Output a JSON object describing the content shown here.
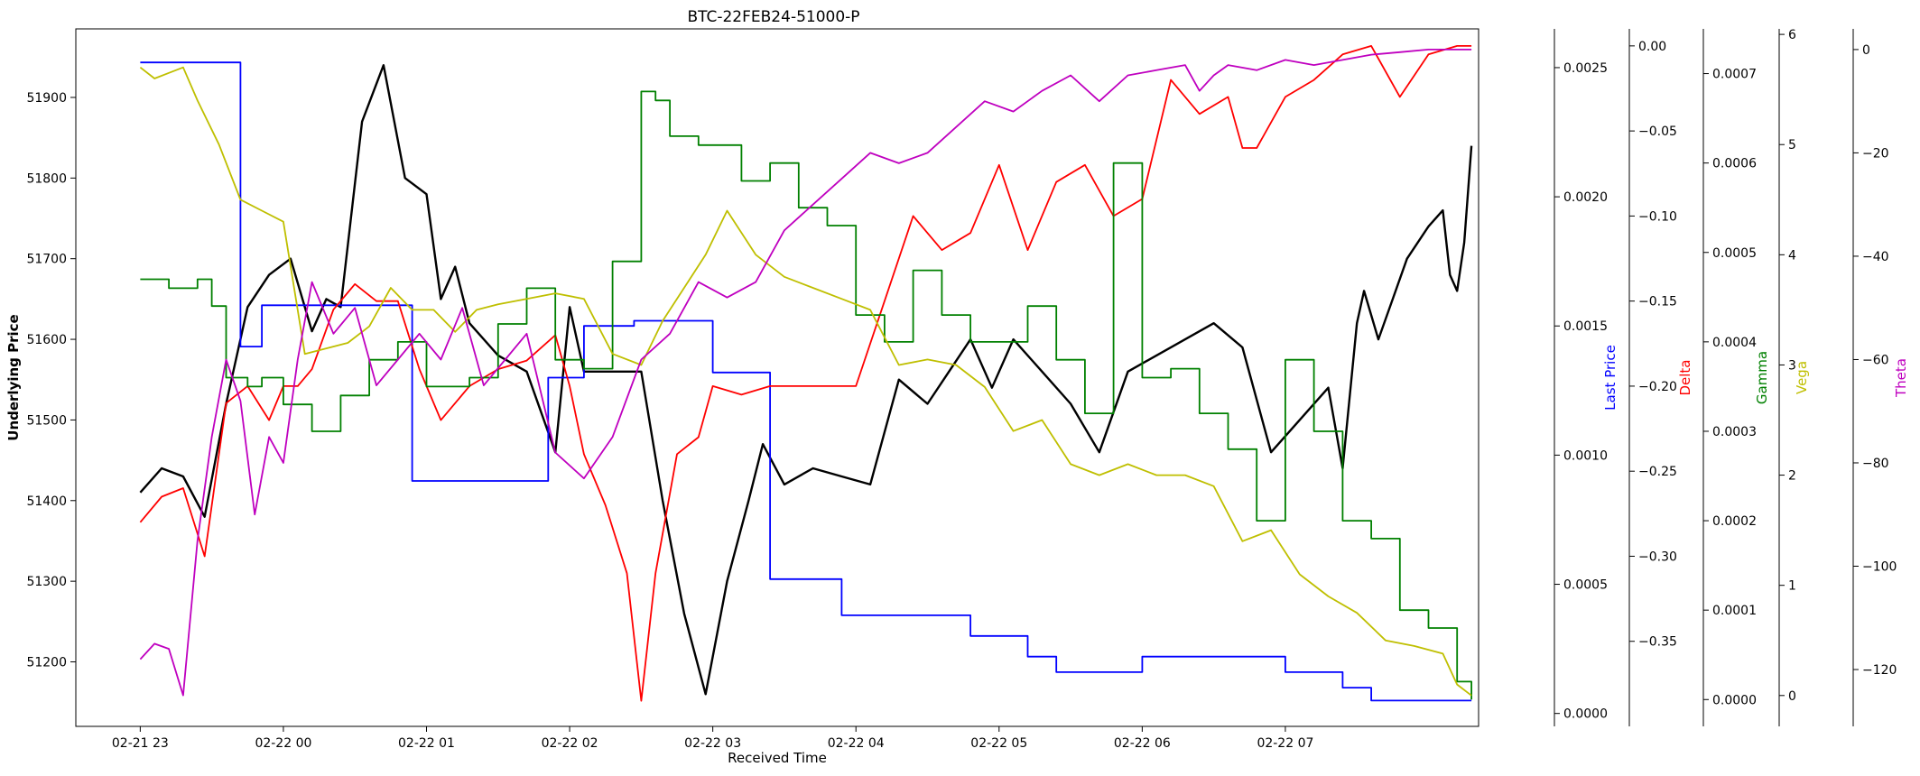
{
  "chart_data": {
    "type": "line",
    "title": "BTC-22FEB24-51000-P",
    "xlabel": "Received Time",
    "ylabel": "Underlying Price",
    "x_ticks": [
      "02-21 23",
      "02-22 00",
      "02-22 01",
      "02-22 02",
      "02-22 03",
      "02-22 04",
      "02-22 05",
      "02-22 06",
      "02-22 07"
    ],
    "x_range_hours": [
      -0.45,
      9.35
    ],
    "x_tick_hours": [
      0,
      1,
      2,
      3,
      4,
      5,
      6,
      7,
      8
    ],
    "grid": false,
    "legend": "none",
    "axes": [
      {
        "id": "underlying",
        "label": "Underlying Price",
        "color": "#000000",
        "side": "left",
        "ylim": [
          51120,
          51985
        ],
        "ticks": [
          51200,
          51300,
          51400,
          51500,
          51600,
          51700,
          51800,
          51900
        ],
        "tick_labels": [
          "51200",
          "51300",
          "51400",
          "51500",
          "51600",
          "51700",
          "51800",
          "51900"
        ]
      },
      {
        "id": "last_price",
        "label": "Last Price",
        "color": "#0000ff",
        "side": "right",
        "ylim": [
          -5e-05,
          0.00265
        ],
        "ticks": [
          0.0,
          0.0005,
          0.001,
          0.0015,
          0.002,
          0.0025
        ],
        "tick_labels": [
          "0.0000",
          "0.0005",
          "0.0010",
          "0.0015",
          "0.0020",
          "0.0025"
        ]
      },
      {
        "id": "delta",
        "label": "Delta",
        "color": "#ff0000",
        "side": "right",
        "ylim": [
          -0.4,
          0.01
        ],
        "ticks": [
          -0.35,
          -0.3,
          -0.25,
          -0.2,
          -0.15,
          -0.1,
          -0.05,
          0.0
        ],
        "tick_labels": [
          "−0.35",
          "−0.30",
          "−0.25",
          "−0.20",
          "−0.15",
          "−0.10",
          "−0.05",
          "0.00"
        ]
      },
      {
        "id": "gamma",
        "label": "Gamma",
        "color": "#008000",
        "side": "right",
        "ylim": [
          -3e-05,
          0.00075
        ],
        "ticks": [
          0.0,
          0.0001,
          0.0002,
          0.0003,
          0.0004,
          0.0005,
          0.0006,
          0.0007
        ],
        "tick_labels": [
          "0.0000",
          "0.0001",
          "0.0002",
          "0.0003",
          "0.0004",
          "0.0005",
          "0.0006",
          "0.0007"
        ]
      },
      {
        "id": "vega",
        "label": "Vega",
        "color": "#bfbf00",
        "side": "right",
        "ylim": [
          -0.28,
          6.05
        ],
        "ticks": [
          0,
          1,
          2,
          3,
          4,
          5,
          6
        ],
        "tick_labels": [
          "0",
          "1",
          "2",
          "3",
          "4",
          "5",
          "6"
        ]
      },
      {
        "id": "theta",
        "label": "Theta",
        "color": "#bf00bf",
        "side": "right",
        "ylim": [
          -131,
          4
        ],
        "ticks": [
          -120,
          -100,
          -80,
          -60,
          -40,
          -20,
          0
        ],
        "tick_labels": [
          "−120",
          "−100",
          "−80",
          "−60",
          "−40",
          "−20",
          "0"
        ]
      }
    ],
    "series": [
      {
        "name": "Underlying Price",
        "axis": "underlying",
        "step": false,
        "x": [
          0.0,
          0.15,
          0.3,
          0.45,
          0.6,
          0.75,
          0.9,
          1.05,
          1.2,
          1.3,
          1.4,
          1.55,
          1.7,
          1.85,
          2.0,
          2.1,
          2.2,
          2.3,
          2.5,
          2.7,
          2.9,
          3.0,
          3.1,
          3.2,
          3.35,
          3.5,
          3.65,
          3.8,
          3.95,
          4.1,
          4.25,
          4.35,
          4.5,
          4.7,
          4.9,
          5.1,
          5.3,
          5.5,
          5.65,
          5.8,
          5.95,
          6.1,
          6.3,
          6.5,
          6.7,
          6.9,
          7.1,
          7.3,
          7.5,
          7.7,
          7.9,
          8.1,
          8.3,
          8.4,
          8.5,
          8.55,
          8.65,
          8.75,
          8.85,
          9.0,
          9.1,
          9.15,
          9.2,
          9.25,
          9.3
        ],
        "values": [
          51410,
          51440,
          51430,
          51380,
          51520,
          51640,
          51680,
          51700,
          51610,
          51650,
          51640,
          51870,
          51940,
          51800,
          51780,
          51650,
          51690,
          51620,
          51580,
          51560,
          51460,
          51640,
          51560,
          51560,
          51560,
          51560,
          51400,
          51260,
          51160,
          51300,
          51400,
          51470,
          51420,
          51440,
          51430,
          51420,
          51550,
          51520,
          51560,
          51600,
          51540,
          51600,
          51560,
          51520,
          51460,
          51560,
          51580,
          51600,
          51620,
          51590,
          51460,
          51500,
          51540,
          51440,
          51620,
          51660,
          51600,
          51650,
          51700,
          51740,
          51760,
          51680,
          51660,
          51720,
          51840
        ]
      },
      {
        "name": "Last Price",
        "axis": "last_price",
        "step": true,
        "x": [
          0.0,
          0.65,
          0.7,
          0.8,
          0.85,
          0.95,
          1.6,
          1.7,
          1.8,
          1.9,
          2.0,
          2.4,
          2.5,
          2.85,
          3.0,
          3.05,
          3.1,
          3.4,
          3.45,
          3.6,
          4.0,
          4.1,
          4.4,
          4.65,
          4.9,
          5.1,
          5.3,
          5.5,
          5.6,
          5.8,
          6.0,
          6.2,
          6.4,
          6.65,
          7.0,
          7.2,
          7.4,
          7.6,
          8.0,
          8.2,
          8.4,
          8.6,
          9.3
        ],
        "values": [
          0.00252,
          0.00252,
          0.00142,
          0.00142,
          0.00158,
          0.00158,
          0.00158,
          0.00158,
          0.00158,
          0.0009,
          0.0009,
          0.0009,
          0.0009,
          0.0013,
          0.0013,
          0.0013,
          0.0015,
          0.0015,
          0.00152,
          0.00152,
          0.00132,
          0.00132,
          0.00052,
          0.00052,
          0.00038,
          0.00038,
          0.00038,
          0.00038,
          0.00038,
          0.0003,
          0.0003,
          0.00022,
          0.00016,
          0.00016,
          0.00022,
          0.00022,
          0.00022,
          0.00022,
          0.00016,
          0.00016,
          0.0001,
          5e-05,
          5e-05
        ]
      },
      {
        "name": "Delta",
        "axis": "delta",
        "step": false,
        "x": [
          0.0,
          0.15,
          0.3,
          0.45,
          0.6,
          0.75,
          0.9,
          1.0,
          1.1,
          1.2,
          1.35,
          1.5,
          1.65,
          1.8,
          1.95,
          2.1,
          2.3,
          2.5,
          2.7,
          2.9,
          3.0,
          3.1,
          3.25,
          3.4,
          3.5,
          3.6,
          3.75,
          3.9,
          4.0,
          4.2,
          4.4,
          4.6,
          4.8,
          5.0,
          5.2,
          5.4,
          5.6,
          5.8,
          6.0,
          6.2,
          6.4,
          6.6,
          6.8,
          7.0,
          7.2,
          7.4,
          7.6,
          7.7,
          7.8,
          8.0,
          8.2,
          8.4,
          8.6,
          8.8,
          9.0,
          9.2,
          9.3
        ],
        "values": [
          -0.28,
          -0.265,
          -0.26,
          -0.3,
          -0.21,
          -0.2,
          -0.22,
          -0.2,
          -0.2,
          -0.19,
          -0.155,
          -0.14,
          -0.15,
          -0.15,
          -0.19,
          -0.22,
          -0.2,
          -0.19,
          -0.185,
          -0.17,
          -0.2,
          -0.24,
          -0.27,
          -0.31,
          -0.385,
          -0.31,
          -0.24,
          -0.23,
          -0.2,
          -0.205,
          -0.2,
          -0.2,
          -0.2,
          -0.2,
          -0.15,
          -0.1,
          -0.12,
          -0.11,
          -0.07,
          -0.12,
          -0.08,
          -0.07,
          -0.1,
          -0.09,
          -0.02,
          -0.04,
          -0.03,
          -0.06,
          -0.06,
          -0.03,
          -0.02,
          -0.005,
          0.0,
          -0.03,
          -0.005,
          0.0,
          0.0
        ]
      },
      {
        "name": "Gamma",
        "axis": "gamma",
        "step": true,
        "x": [
          0.0,
          0.2,
          0.4,
          0.5,
          0.6,
          0.75,
          0.85,
          1.0,
          1.2,
          1.4,
          1.6,
          1.8,
          2.0,
          2.3,
          2.5,
          2.7,
          2.9,
          3.1,
          3.3,
          3.5,
          3.6,
          3.7,
          3.8,
          3.9,
          4.0,
          4.2,
          4.4,
          4.6,
          4.8,
          5.0,
          5.2,
          5.4,
          5.6,
          5.8,
          6.0,
          6.2,
          6.4,
          6.6,
          6.8,
          7.0,
          7.2,
          7.4,
          7.6,
          7.8,
          8.0,
          8.2,
          8.4,
          8.6,
          8.8,
          9.0,
          9.2,
          9.3
        ],
        "values": [
          0.00047,
          0.00046,
          0.00047,
          0.00044,
          0.00036,
          0.00035,
          0.00036,
          0.00033,
          0.0003,
          0.00034,
          0.00038,
          0.0004,
          0.00035,
          0.00036,
          0.00042,
          0.00046,
          0.00038,
          0.00037,
          0.00049,
          0.00068,
          0.00067,
          0.00063,
          0.00063,
          0.00062,
          0.00062,
          0.00058,
          0.0006,
          0.00055,
          0.00053,
          0.00043,
          0.0004,
          0.00048,
          0.00043,
          0.0004,
          0.0004,
          0.00044,
          0.00038,
          0.00032,
          0.0006,
          0.00036,
          0.00037,
          0.00032,
          0.00028,
          0.0002,
          0.00038,
          0.0003,
          0.0002,
          0.00018,
          0.0001,
          8e-05,
          2e-05,
          0.0
        ]
      },
      {
        "name": "Vega",
        "axis": "vega",
        "step": false,
        "x": [
          0.0,
          0.1,
          0.2,
          0.3,
          0.4,
          0.55,
          0.7,
          0.85,
          1.0,
          1.15,
          1.3,
          1.45,
          1.6,
          1.75,
          1.9,
          2.05,
          2.2,
          2.35,
          2.5,
          2.7,
          2.9,
          3.1,
          3.3,
          3.5,
          3.65,
          3.8,
          3.95,
          4.1,
          4.3,
          4.5,
          4.7,
          4.9,
          5.1,
          5.3,
          5.5,
          5.7,
          5.9,
          6.1,
          6.3,
          6.5,
          6.7,
          6.9,
          7.1,
          7.3,
          7.5,
          7.7,
          7.9,
          8.1,
          8.3,
          8.5,
          8.7,
          8.9,
          9.1,
          9.2,
          9.3
        ],
        "values": [
          5.7,
          5.6,
          5.65,
          5.7,
          5.4,
          5.0,
          4.5,
          4.4,
          4.3,
          3.1,
          3.15,
          3.2,
          3.35,
          3.7,
          3.5,
          3.5,
          3.3,
          3.5,
          3.55,
          3.6,
          3.65,
          3.6,
          3.1,
          3.0,
          3.4,
          3.7,
          4.0,
          4.4,
          4.0,
          3.8,
          3.7,
          3.6,
          3.5,
          3.0,
          3.05,
          3.0,
          2.8,
          2.4,
          2.5,
          2.1,
          2.0,
          2.1,
          2.0,
          2.0,
          1.9,
          1.4,
          1.5,
          1.1,
          0.9,
          0.75,
          0.5,
          0.45,
          0.38,
          0.1,
          0.0
        ]
      },
      {
        "name": "Theta",
        "axis": "theta",
        "step": false,
        "x": [
          0.0,
          0.1,
          0.2,
          0.3,
          0.4,
          0.5,
          0.6,
          0.7,
          0.8,
          0.9,
          1.0,
          1.1,
          1.2,
          1.35,
          1.5,
          1.65,
          1.8,
          1.95,
          2.1,
          2.25,
          2.4,
          2.55,
          2.7,
          2.9,
          3.1,
          3.3,
          3.5,
          3.7,
          3.9,
          4.1,
          4.3,
          4.5,
          4.7,
          4.9,
          5.1,
          5.3,
          5.5,
          5.7,
          5.9,
          6.1,
          6.3,
          6.5,
          6.7,
          6.9,
          7.1,
          7.3,
          7.4,
          7.5,
          7.6,
          7.8,
          8.0,
          8.2,
          8.4,
          8.6,
          8.8,
          9.0,
          9.2,
          9.3
        ],
        "values": [
          -118,
          -115,
          -116,
          -125,
          -95,
          -75,
          -60,
          -68,
          -90,
          -75,
          -80,
          -60,
          -45,
          -55,
          -50,
          -65,
          -60,
          -55,
          -60,
          -50,
          -65,
          -60,
          -55,
          -78,
          -83,
          -75,
          -60,
          -55,
          -45,
          -48,
          -45,
          -35,
          -30,
          -25,
          -20,
          -22,
          -20,
          -15,
          -10,
          -12,
          -8,
          -5,
          -10,
          -5,
          -4,
          -3,
          -8,
          -5,
          -3,
          -4,
          -2,
          -3,
          -2,
          -1,
          -0.5,
          0,
          0,
          0
        ]
      }
    ]
  }
}
